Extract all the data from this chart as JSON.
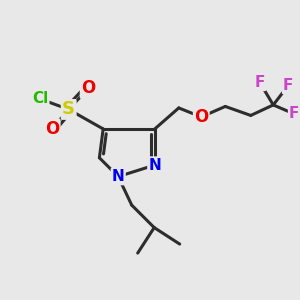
{
  "background_color": "#e8e8e8",
  "bond_color": "#2d2d2d",
  "bond_width": 2.2,
  "atom_colors": {
    "Cl": "#22bb00",
    "S": "#cccc00",
    "O": "#ee0000",
    "N": "#0000ee",
    "F": "#cc44cc",
    "C": "#2d2d2d"
  },
  "atom_fontsizes": {
    "Cl": 11,
    "S": 13,
    "O": 12,
    "N": 11,
    "F": 11,
    "C": 10
  }
}
